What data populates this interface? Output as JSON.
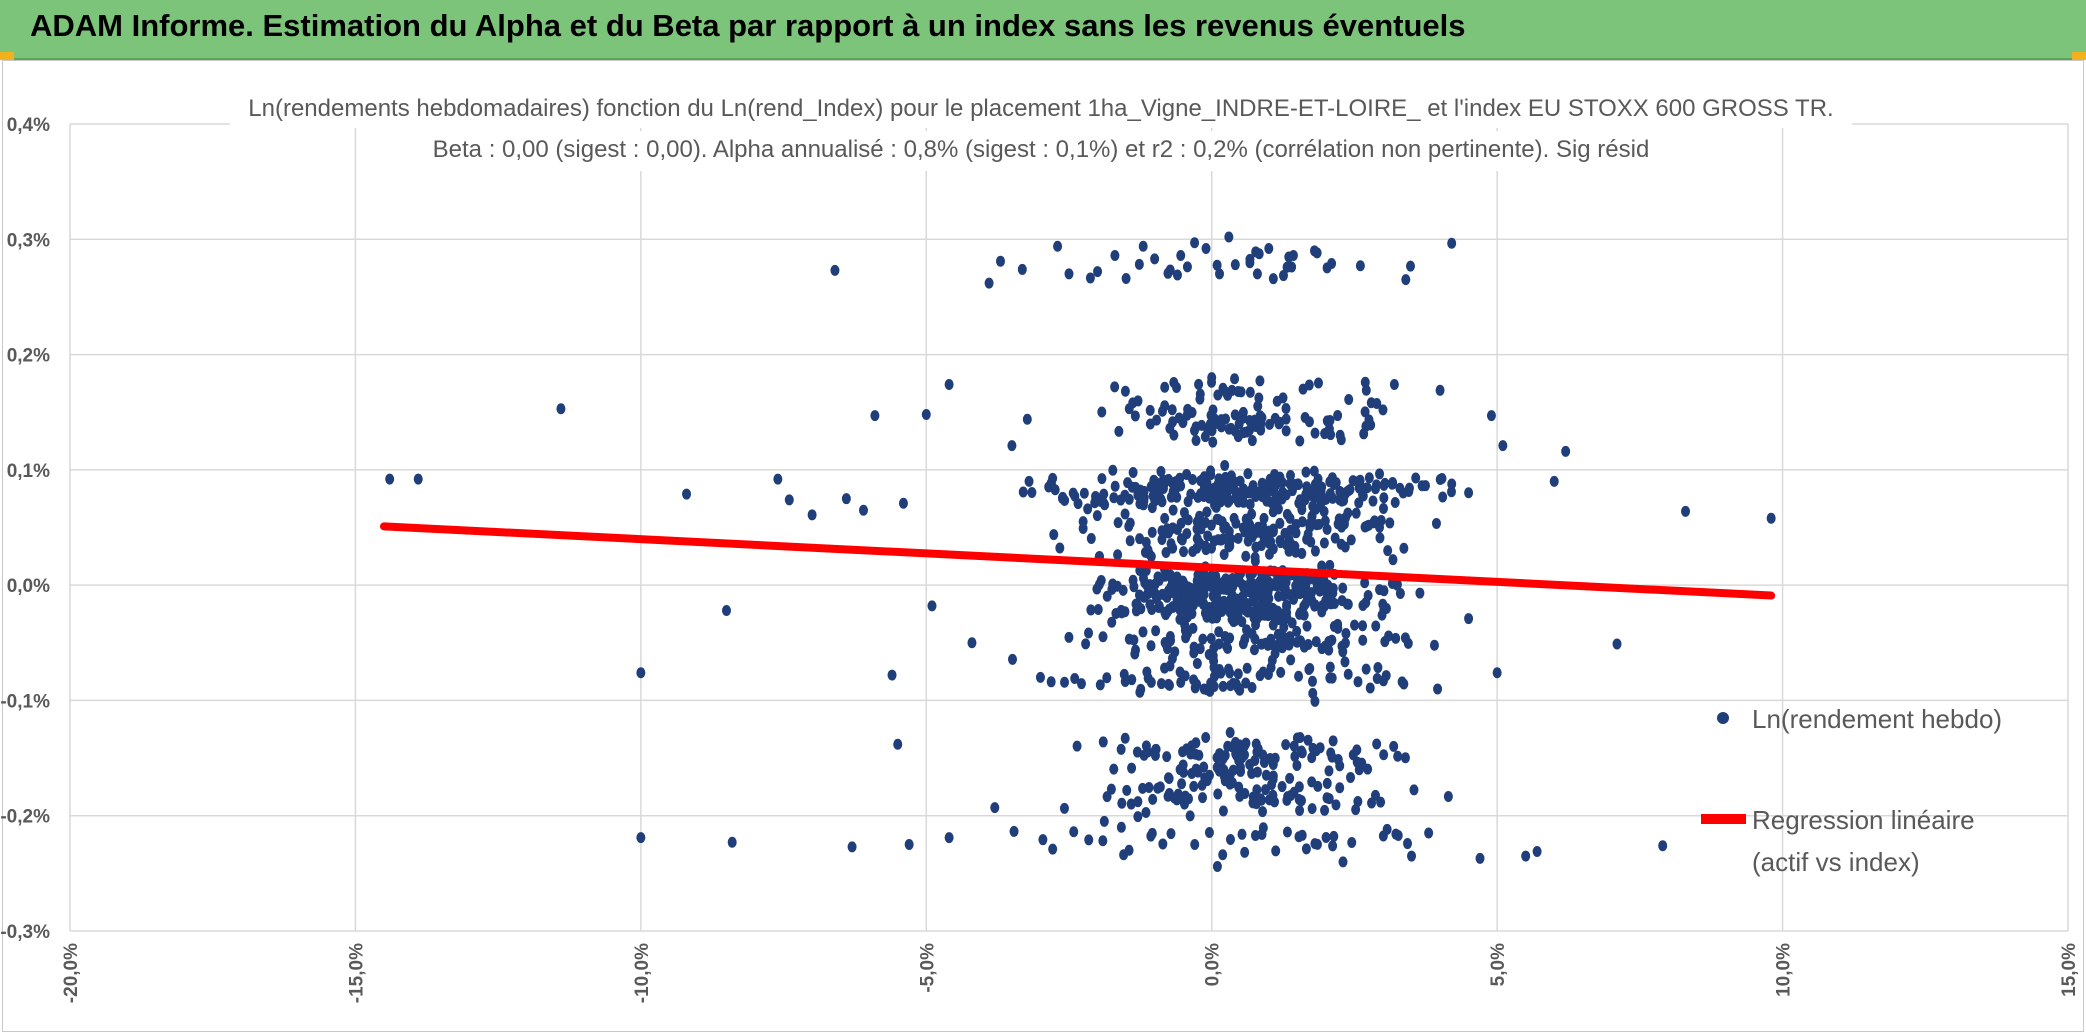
{
  "header": {
    "title": "ADAM Informe. Estimation du Alpha et du Beta par rapport à un index sans les revenus éventuels"
  },
  "colors": {
    "banner": "#7cc47a",
    "points": "#203f7a",
    "regression": "#ff0000",
    "grid": "#d9d9d9",
    "accent": "#f2b21e"
  },
  "chart_data": {
    "type": "scatter",
    "title": "Ln(rendements hebdomadaires) fonction du Ln(rend_Index) pour le placement 1ha_Vigne_INDRE-ET-LOIRE_ et l'index EU STOXX 600 GROSS TR.",
    "subtitle": "Beta : 0,00 (sigest : 0,00). Alpha annualisé : 0,8% (sigest : 0,1%) et r2 : 0,2% (corrélation non pertinente). Sig résid",
    "xlim": [
      -20,
      15
    ],
    "ylim": [
      -0.3,
      0.4
    ],
    "x_ticks": [
      "-20,0%",
      "-15,0%",
      "-10,0%",
      "-5,0%",
      "0,0%",
      "5,0%",
      "10,0%",
      "15,0%"
    ],
    "y_ticks": [
      "0,4%",
      "0,3%",
      "0,2%",
      "0,1%",
      "0,0%",
      "-0,1%",
      "-0,2%",
      "-0,3%"
    ],
    "grid": true,
    "legend_position": "right",
    "legend": [
      "Ln(rendement hebdo)",
      "Regression linéaire (actif vs index)"
    ],
    "series": [
      {
        "name": "Ln(rendement hebdo)",
        "kind": "points",
        "points": [
          [
            -14.4,
            0.092
          ],
          [
            -13.9,
            0.092
          ],
          [
            -11.4,
            0.153
          ],
          [
            -10.0,
            -0.076
          ],
          [
            -10.0,
            -0.219
          ],
          [
            -9.2,
            0.079
          ],
          [
            -8.5,
            -0.022
          ],
          [
            -8.4,
            -0.223
          ],
          [
            -7.6,
            0.092
          ],
          [
            -7.4,
            0.074
          ],
          [
            -7.0,
            0.061
          ],
          [
            -6.6,
            0.273
          ],
          [
            -6.4,
            0.075
          ],
          [
            -6.3,
            -0.227
          ],
          [
            -6.1,
            0.065
          ],
          [
            -5.9,
            0.147
          ],
          [
            -5.6,
            -0.078
          ],
          [
            -5.5,
            -0.138
          ],
          [
            -5.4,
            0.071
          ],
          [
            -5.3,
            -0.225
          ],
          [
            -5.0,
            0.148
          ],
          [
            -4.9,
            -0.018
          ],
          [
            -4.6,
            0.174
          ],
          [
            -4.6,
            -0.219
          ],
          [
            -4.2,
            -0.05
          ],
          [
            -3.9,
            0.262
          ],
          [
            -3.7,
            0.281
          ],
          [
            -3.8,
            -0.193
          ],
          [
            -3.5,
            0.121
          ],
          [
            -3.2,
            0.09
          ],
          [
            -3.0,
            -0.08
          ],
          [
            -2.7,
            0.294
          ],
          [
            -2.5,
            0.27
          ],
          [
            -2.4,
            -0.081
          ],
          [
            -2.0,
            0.272
          ],
          [
            -1.9,
            -0.136
          ],
          [
            -1.7,
            0.172
          ],
          [
            -1.5,
            0.266
          ],
          [
            -1.4,
            -0.082
          ],
          [
            -1.2,
            0.294
          ],
          [
            -1.0,
            0.283
          ],
          [
            -0.9,
            -0.175
          ],
          [
            -0.6,
            0.269
          ],
          [
            -0.5,
            -0.156
          ],
          [
            -0.3,
            0.297
          ],
          [
            -0.1,
            0.292
          ],
          [
            0.0,
            0.18
          ],
          [
            0.1,
            -0.244
          ],
          [
            0.3,
            0.302
          ],
          [
            0.4,
            0.179
          ],
          [
            0.6,
            -0.137
          ],
          [
            0.8,
            0.27
          ],
          [
            1.0,
            0.292
          ],
          [
            1.1,
            -0.188
          ],
          [
            1.4,
            0.276
          ],
          [
            1.6,
            0.17
          ],
          [
            1.8,
            0.29
          ],
          [
            1.9,
            -0.141
          ],
          [
            2.1,
            0.279
          ],
          [
            2.3,
            -0.24
          ],
          [
            2.4,
            0.161
          ],
          [
            2.6,
            0.091
          ],
          [
            2.8,
            -0.189
          ],
          [
            3.0,
            0.152
          ],
          [
            3.2,
            0.174
          ],
          [
            3.4,
            0.265
          ],
          [
            3.5,
            -0.235
          ],
          [
            3.8,
            -0.215
          ],
          [
            4.0,
            0.169
          ],
          [
            4.2,
            0.081
          ],
          [
            4.5,
            -0.029
          ],
          [
            4.7,
            -0.237
          ],
          [
            4.9,
            0.147
          ],
          [
            5.0,
            -0.076
          ],
          [
            5.1,
            0.121
          ],
          [
            5.5,
            -0.235
          ],
          [
            5.7,
            -0.231
          ],
          [
            6.0,
            0.09
          ],
          [
            6.2,
            0.116
          ],
          [
            7.1,
            -0.051
          ],
          [
            7.9,
            -0.226
          ],
          [
            8.3,
            0.064
          ],
          [
            9.8,
            0.058
          ]
        ]
      },
      {
        "name": "Regression linéaire (actif vs index)",
        "kind": "line",
        "points": [
          [
            -14.5,
            0.051
          ],
          [
            9.8,
            -0.009
          ]
        ]
      }
    ]
  }
}
